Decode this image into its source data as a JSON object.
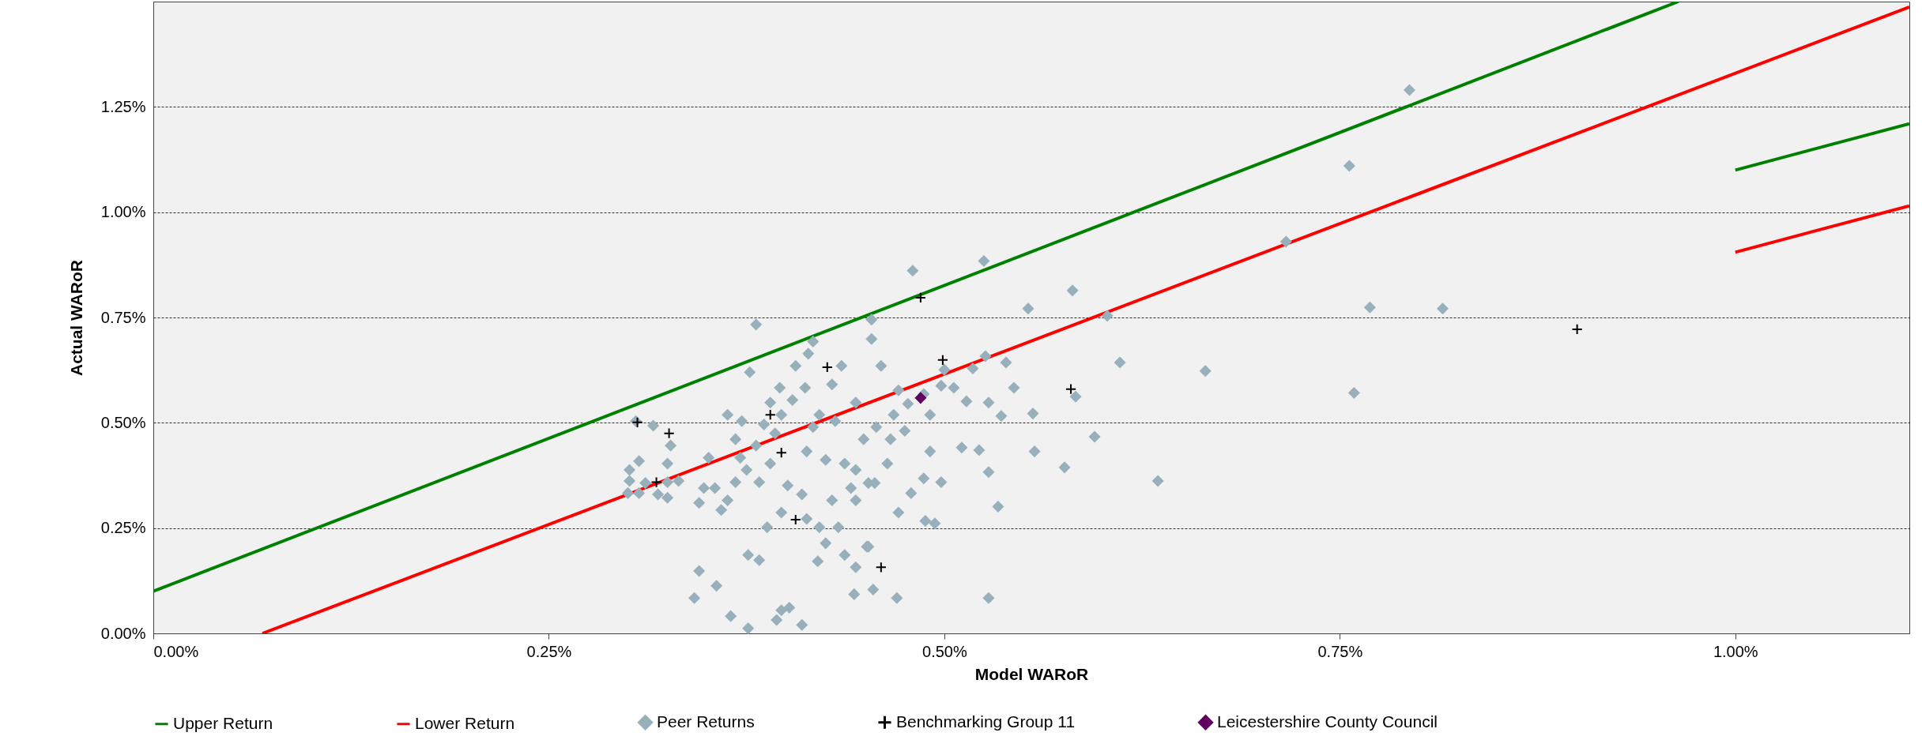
{
  "chart_data": {
    "type": "scatter",
    "xlabel": "Model WARoR",
    "ylabel": "Actual WARoR",
    "xlim": [
      0,
      1.11
    ],
    "ylim": [
      0,
      1.5
    ],
    "xticks": [
      {
        "value": 0,
        "label": "0.00%"
      },
      {
        "value": 0.25,
        "label": "0.25%"
      },
      {
        "value": 0.5,
        "label": "0.50%"
      },
      {
        "value": 0.75,
        "label": "0.75%"
      },
      {
        "value": 1,
        "label": "1.00%"
      }
    ],
    "yticks": [
      {
        "value": 0,
        "label": "0.00%"
      },
      {
        "value": 0.25,
        "label": "0.25%"
      },
      {
        "value": 0.5,
        "label": "0.50%"
      },
      {
        "value": 0.75,
        "label": "0.75%"
      },
      {
        "value": 1,
        "label": "1.00%"
      },
      {
        "value": 1.25,
        "label": "1.25%"
      }
    ],
    "grid": "y",
    "legend": "bottom",
    "series": [
      {
        "name": "Upper Return",
        "type": "line",
        "color": "#008000",
        "x": [
          0,
          0.964,
          0.98,
          1.0,
          1.11
        ],
        "values": [
          0.1,
          1.5,
          null,
          1.1,
          1.21
        ]
      },
      {
        "name": "Lower Return",
        "type": "line",
        "color": "#ff0000",
        "x": [
          0.069,
          1.11,
          1.05,
          1.0,
          1.11
        ],
        "values": [
          0,
          1.487,
          null,
          0.905,
          1.015
        ]
      },
      {
        "name": "Peer Returns",
        "color": "#98b0bc",
        "marker": "diamond",
        "x": [
          0.794,
          0.756,
          0.716,
          0.769,
          0.815,
          0.759,
          0.665,
          0.635,
          0.611,
          0.603,
          0.595,
          0.581,
          0.583,
          0.576,
          0.525,
          0.553,
          0.556,
          0.557,
          0.544,
          0.539,
          0.536,
          0.528,
          0.534,
          0.528,
          0.511,
          0.522,
          0.526,
          0.518,
          0.48,
          0.491,
          0.498,
          0.494,
          0.488,
          0.487,
          0.479,
          0.471,
          0.475,
          0.468,
          0.471,
          0.46,
          0.454,
          0.454,
          0.444,
          0.457,
          0.449,
          0.444,
          0.452,
          0.444,
          0.451,
          0.455,
          0.47,
          0.435,
          0.429,
          0.431,
          0.421,
          0.417,
          0.413,
          0.425,
          0.437,
          0.441,
          0.429,
          0.433,
          0.425,
          0.42,
          0.437,
          0.443,
          0.406,
          0.412,
          0.404,
          0.397,
          0.393,
          0.386,
          0.381,
          0.39,
          0.383,
          0.401,
          0.41,
          0.397,
          0.388,
          0.376,
          0.383,
          0.381,
          0.402,
          0.397,
          0.41,
          0.394,
          0.376,
          0.365,
          0.356,
          0.345,
          0.342,
          0.363,
          0.359,
          0.355,
          0.368,
          0.371,
          0.375,
          0.368,
          0.363,
          0.372,
          0.351,
          0.348,
          0.345,
          0.377,
          0.39,
          0.396,
          0.414,
          0.417,
          0.325,
          0.325,
          0.327,
          0.316,
          0.307,
          0.301,
          0.301,
          0.3,
          0.307,
          0.311,
          0.319,
          0.325,
          0.332,
          0.305,
          0.491,
          0.464,
          0.456,
          0.466,
          0.487,
          0.477,
          0.498,
          0.506,
          0.5,
          0.514,
          0.528,
          0.413,
          0.421,
          0.444,
          0.452
        ],
        "values": [
          1.29,
          1.11,
          0.93,
          0.774,
          0.771,
          0.571,
          0.623,
          0.362,
          0.643,
          0.754,
          0.467,
          0.814,
          0.562,
          0.394,
          0.884,
          0.771,
          0.522,
          0.432,
          0.583,
          0.643,
          0.516,
          0.383,
          0.301,
          0.084,
          0.441,
          0.435,
          0.658,
          0.629,
          0.861,
          0.519,
          0.359,
          0.261,
          0.267,
          0.368,
          0.333,
          0.287,
          0.481,
          0.519,
          0.577,
          0.635,
          0.699,
          0.745,
          0.548,
          0.49,
          0.461,
          0.388,
          0.357,
          0.316,
          0.206,
          0.104,
          0.084,
          0.635,
          0.591,
          0.504,
          0.519,
          0.49,
          0.432,
          0.412,
          0.403,
          0.345,
          0.316,
          0.252,
          0.214,
          0.171,
          0.186,
          0.093,
          0.635,
          0.583,
          0.554,
          0.519,
          0.475,
          0.496,
          0.446,
          0.403,
          0.359,
          0.351,
          0.33,
          0.287,
          0.252,
          0.186,
          0.174,
          0.733,
          0.061,
          0.055,
          0.02,
          0.032,
          0.012,
          0.041,
          0.113,
          0.148,
          0.084,
          0.316,
          0.293,
          0.345,
          0.359,
          0.417,
          0.388,
          0.461,
          0.519,
          0.504,
          0.417,
          0.345,
          0.31,
          0.62,
          0.548,
          0.583,
          0.664,
          0.693,
          0.359,
          0.403,
          0.446,
          0.493,
          0.409,
          0.388,
          0.362,
          0.333,
          0.333,
          0.357,
          0.33,
          0.322,
          0.362,
          0.504,
          0.432,
          0.403,
          0.357,
          0.461,
          0.568,
          0.545,
          0.588,
          0.583,
          0.626,
          0.551,
          0.548,
          0.272,
          0.252,
          0.157,
          0.206
        ]
      },
      {
        "name": "Benchmarking Group 11",
        "color": "#000000",
        "marker": "cross",
        "x": [
          0.306,
          0.326,
          0.318,
          0.39,
          0.397,
          0.406,
          0.426,
          0.46,
          0.485,
          0.499,
          0.58,
          0.9
        ],
        "values": [
          0.501,
          0.475,
          0.359,
          0.519,
          0.429,
          0.27,
          0.632,
          0.157,
          0.797,
          0.649,
          0.58,
          0.722
        ]
      },
      {
        "name": "Leicestershire County Council",
        "color": "#600060",
        "marker": "diamond",
        "x": [
          0.485
        ],
        "values": [
          0.559
        ]
      }
    ]
  }
}
